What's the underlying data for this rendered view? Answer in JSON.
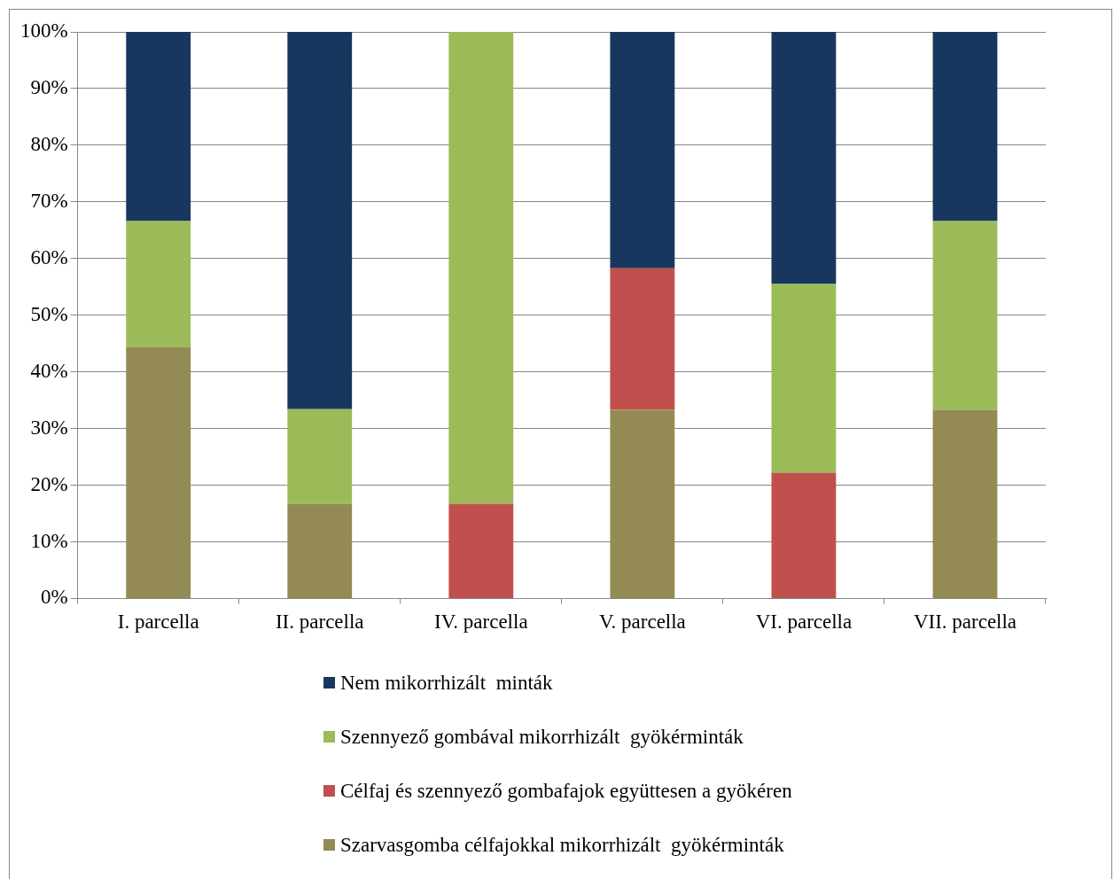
{
  "chart_data": {
    "type": "bar",
    "stacked": true,
    "categories": [
      "I. parcella",
      "II. parcella",
      "IV. parcella",
      "V. parcella",
      "VI. parcella",
      "VII. parcella"
    ],
    "series": [
      {
        "name": "Szarvasgomba célfajokkal mikorrhizált  gyökérminták",
        "color": "#948a54",
        "values": [
          44.4,
          16.7,
          0,
          33.3,
          0,
          33.3
        ]
      },
      {
        "name": "Célfaj és szennyező gombafajok együttesen a gyökéren",
        "color": "#c0504d",
        "values": [
          0,
          0,
          16.7,
          25,
          22.2,
          0
        ]
      },
      {
        "name": "Szennyező gombával mikorrhizált  gyökérminták",
        "color": "#9bbb59",
        "values": [
          22.2,
          16.7,
          83.3,
          0,
          33.3,
          33.3
        ]
      },
      {
        "name": "Nem mikorrhizált  minták",
        "color": "#17375e",
        "values": [
          33.4,
          66.6,
          0,
          41.7,
          44.5,
          33.4
        ]
      }
    ],
    "ylim": [
      0,
      100
    ],
    "yticks": [
      {
        "value": 0,
        "label": "0%"
      },
      {
        "value": 10,
        "label": "10%"
      },
      {
        "value": 20,
        "label": "20%"
      },
      {
        "value": 30,
        "label": "30%"
      },
      {
        "value": 40,
        "label": "40%"
      },
      {
        "value": 50,
        "label": "50%"
      },
      {
        "value": 60,
        "label": "60%"
      },
      {
        "value": 70,
        "label": "70%"
      },
      {
        "value": 80,
        "label": "80%"
      },
      {
        "value": 90,
        "label": "90%"
      },
      {
        "value": 100,
        "label": "100%"
      }
    ],
    "grid": "y",
    "legend": "bottom"
  }
}
